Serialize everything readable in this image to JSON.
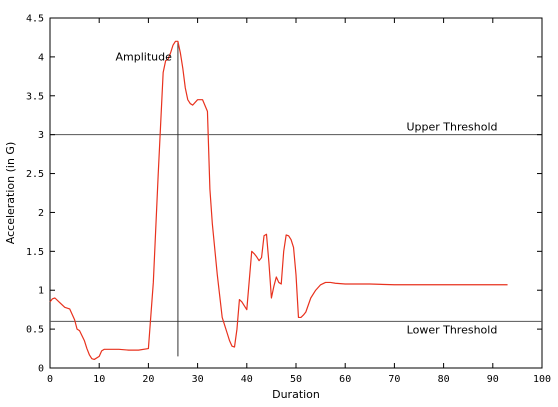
{
  "chart_data": {
    "type": "line",
    "title": "",
    "xlabel": "Duration",
    "ylabel": "Acceleration (in G)",
    "xlim": [
      0,
      100
    ],
    "ylim": [
      0,
      4.5
    ],
    "x_ticks": [
      0,
      10,
      20,
      30,
      40,
      50,
      60,
      70,
      80,
      90,
      100
    ],
    "y_ticks": [
      0,
      0.5,
      1,
      1.5,
      2,
      2.5,
      3,
      3.5,
      4,
      4.5
    ],
    "x_tick_labels": [
      "0",
      "10",
      "20",
      "30",
      "40",
      "50",
      "60",
      "70",
      "80",
      "90",
      "100"
    ],
    "y_tick_labels": [
      "0",
      "0.5",
      "1",
      "1.5",
      "2",
      "2.5",
      "3",
      "3.5",
      "4",
      "4.5"
    ],
    "grid": false,
    "series": [
      {
        "color": "#e8321e",
        "x": [
          0,
          0.5,
          1,
          2,
          3,
          4,
          5,
          5.5,
          6,
          7,
          7.5,
          8,
          8.5,
          9,
          10,
          10.5,
          11,
          12,
          14,
          16,
          18,
          20,
          21,
          22,
          23,
          23.5,
          24,
          24.5,
          25,
          25.5,
          26,
          26.5,
          27,
          27.5,
          28,
          28.5,
          29,
          30,
          31,
          32,
          32.5,
          33,
          34,
          35,
          36,
          36.5,
          37,
          37.5,
          38,
          38.5,
          39,
          40,
          41,
          41.5,
          42,
          42.5,
          43,
          43.5,
          44,
          44.5,
          45,
          45.5,
          46,
          46.5,
          47,
          47.5,
          48,
          48.5,
          49,
          49.5,
          50,
          50.5,
          51,
          51.5,
          52,
          53,
          54,
          55,
          56,
          57,
          58,
          60,
          62,
          65,
          70,
          75,
          80,
          85,
          90,
          93
        ],
        "y": [
          0.85,
          0.89,
          0.9,
          0.84,
          0.78,
          0.76,
          0.62,
          0.5,
          0.48,
          0.35,
          0.25,
          0.17,
          0.12,
          0.11,
          0.15,
          0.22,
          0.24,
          0.24,
          0.24,
          0.23,
          0.23,
          0.25,
          1.1,
          2.5,
          3.8,
          3.95,
          3.97,
          4.05,
          4.15,
          4.2,
          4.2,
          4.05,
          3.85,
          3.6,
          3.45,
          3.4,
          3.38,
          3.45,
          3.45,
          3.3,
          2.3,
          1.85,
          1.2,
          0.65,
          0.45,
          0.35,
          0.28,
          0.27,
          0.5,
          0.88,
          0.85,
          0.75,
          1.5,
          1.47,
          1.43,
          1.38,
          1.42,
          1.7,
          1.72,
          1.35,
          0.9,
          1.05,
          1.17,
          1.1,
          1.08,
          1.5,
          1.71,
          1.7,
          1.65,
          1.55,
          1.2,
          0.65,
          0.65,
          0.68,
          0.72,
          0.9,
          1.0,
          1.07,
          1.1,
          1.1,
          1.09,
          1.08,
          1.08,
          1.08,
          1.07,
          1.07,
          1.07,
          1.07,
          1.07,
          1.07
        ]
      }
    ],
    "reference_lines": [
      {
        "value": 3.0,
        "label": "Upper Threshold",
        "color": "#555555"
      },
      {
        "value": 0.6,
        "label": "Lower Threshold",
        "color": "#555555"
      }
    ],
    "annotations": [
      {
        "text": "Amplitude",
        "x": 26,
        "y_top": 4.2,
        "y_bottom": 0.15
      }
    ]
  }
}
